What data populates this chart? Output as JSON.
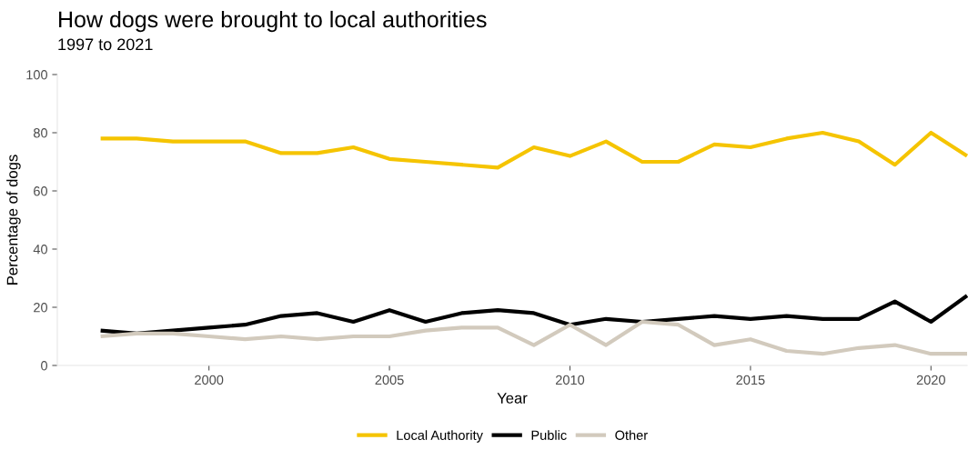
{
  "chart_data": {
    "type": "line",
    "title": "How dogs were brought to local authorities",
    "subtitle": "1997 to 2021",
    "xlabel": "Year",
    "ylabel": "Percentage of dogs",
    "x": [
      1997,
      1998,
      1999,
      2000,
      2001,
      2002,
      2003,
      2004,
      2005,
      2006,
      2007,
      2008,
      2009,
      2010,
      2011,
      2012,
      2013,
      2014,
      2015,
      2016,
      2017,
      2018,
      2019,
      2020,
      2021
    ],
    "series": [
      {
        "name": "Local Authority",
        "color": "#f5c400",
        "values": [
          78,
          78,
          77,
          77,
          77,
          73,
          73,
          75,
          71,
          70,
          69,
          68,
          75,
          72,
          77,
          70,
          70,
          76,
          75,
          78,
          80,
          77,
          69,
          80,
          72
        ]
      },
      {
        "name": "Public",
        "color": "#000000",
        "values": [
          12,
          11,
          12,
          13,
          14,
          17,
          18,
          15,
          19,
          15,
          18,
          19,
          18,
          14,
          16,
          15,
          16,
          17,
          16,
          17,
          16,
          16,
          22,
          15,
          24
        ]
      },
      {
        "name": "Other",
        "color": "#d2cabd",
        "values": [
          10,
          11,
          11,
          10,
          9,
          10,
          9,
          10,
          10,
          12,
          13,
          13,
          7,
          14,
          7,
          15,
          14,
          7,
          9,
          5,
          4,
          6,
          7,
          4,
          4
        ]
      }
    ],
    "xlim": [
      1995.8,
      2021
    ],
    "xticks": [
      2000,
      2005,
      2010,
      2015,
      2020
    ],
    "ylim": [
      0,
      100
    ],
    "yticks": [
      0,
      20,
      40,
      60,
      80,
      100
    ],
    "grid": false,
    "legend": "bottom",
    "marker": "none",
    "line_style": "solid"
  }
}
